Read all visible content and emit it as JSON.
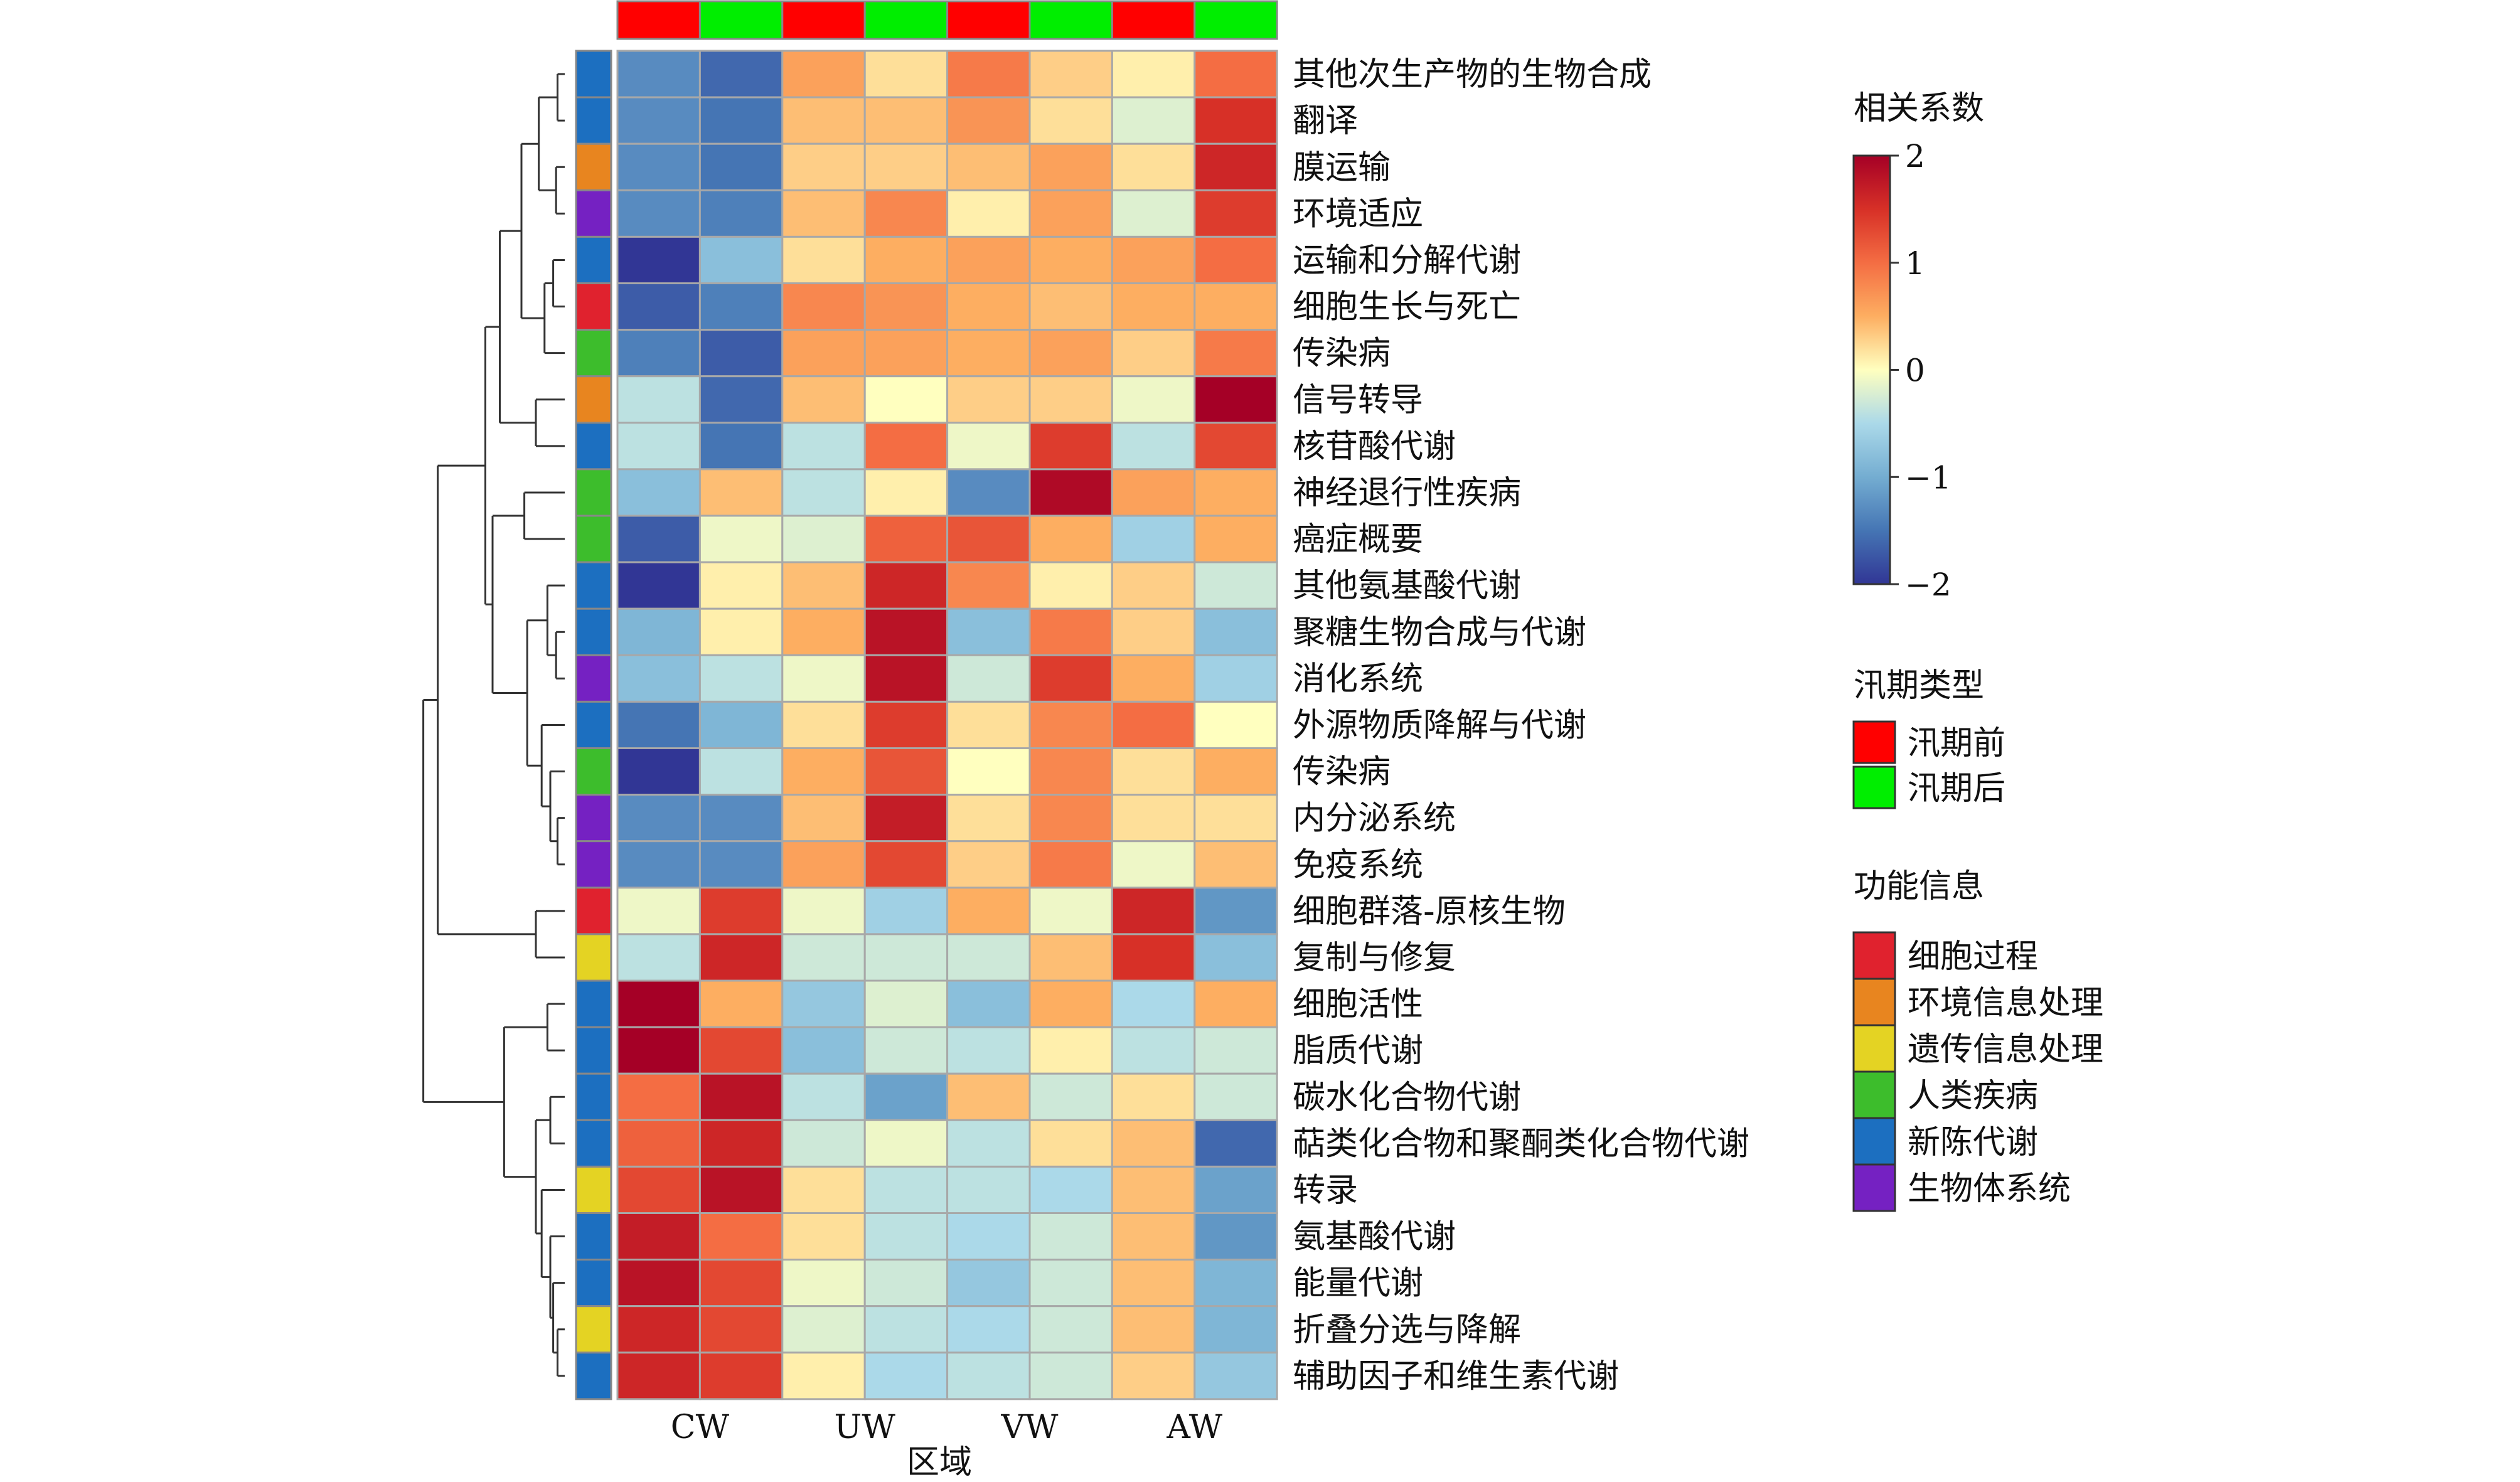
{
  "chart_data": {
    "type": "heatmap",
    "columns": [
      "CW",
      "CW",
      "UW",
      "UW",
      "VW",
      "VW",
      "AW",
      "AW"
    ],
    "column_groups": [
      "CW",
      "UW",
      "VW",
      "AW"
    ],
    "xlabel": "区域",
    "season_annotation": [
      "汛期前",
      "汛期后",
      "汛期前",
      "汛期后",
      "汛期前",
      "汛期后",
      "汛期前",
      "汛期后"
    ],
    "rows": [
      {
        "label": "其他次生产物的生物合成",
        "function": "新陈代谢",
        "values": [
          -1.3,
          -1.6,
          0.6,
          0.2,
          0.9,
          0.3,
          0.1,
          1.0
        ]
      },
      {
        "label": "翻译",
        "function": "新陈代谢",
        "values": [
          -1.3,
          -1.5,
          0.4,
          0.4,
          0.7,
          0.2,
          -0.2,
          1.5
        ]
      },
      {
        "label": "膜运输",
        "function": "环境信息处理",
        "values": [
          -1.3,
          -1.5,
          0.3,
          0.3,
          0.4,
          0.6,
          0.2,
          1.6
        ]
      },
      {
        "label": "环境适应",
        "function": "生物体系统",
        "values": [
          -1.3,
          -1.4,
          0.4,
          0.8,
          0.1,
          0.6,
          -0.2,
          1.4
        ]
      },
      {
        "label": "运输和分解代谢",
        "function": "新陈代谢",
        "values": [
          -2.0,
          -0.8,
          0.2,
          0.5,
          0.6,
          0.5,
          0.6,
          1.0
        ]
      },
      {
        "label": "细胞生长与死亡",
        "function": "细胞过程",
        "values": [
          -1.7,
          -1.4,
          0.8,
          0.7,
          0.5,
          0.4,
          0.5,
          0.5
        ]
      },
      {
        "label": "传染病",
        "function": "人类疾病",
        "values": [
          -1.4,
          -1.7,
          0.6,
          0.6,
          0.5,
          0.6,
          0.3,
          0.9
        ]
      },
      {
        "label": "信号转导",
        "function": "环境信息处理",
        "values": [
          -0.4,
          -1.6,
          0.4,
          0.0,
          0.3,
          0.3,
          -0.1,
          2.1
        ]
      },
      {
        "label": "核苷酸代谢",
        "function": "新陈代谢",
        "values": [
          -0.4,
          -1.5,
          -0.4,
          1.0,
          -0.1,
          1.4,
          -0.4,
          1.3
        ]
      },
      {
        "label": "神经退行性疾病",
        "function": "人类疾病",
        "values": [
          -0.8,
          0.4,
          -0.4,
          0.1,
          -1.3,
          1.9,
          0.6,
          0.5
        ]
      },
      {
        "label": "癌症概要",
        "function": "人类疾病",
        "values": [
          -1.7,
          -0.1,
          -0.2,
          1.1,
          1.2,
          0.5,
          -0.6,
          0.5
        ]
      },
      {
        "label": "其他氨基酸代谢",
        "function": "新陈代谢",
        "values": [
          -2.0,
          0.1,
          0.4,
          1.6,
          0.8,
          0.1,
          0.3,
          -0.3
        ]
      },
      {
        "label": "聚糖生物合成与代谢",
        "function": "新陈代谢",
        "values": [
          -0.9,
          0.1,
          0.5,
          1.8,
          -0.8,
          0.9,
          0.3,
          -0.8
        ]
      },
      {
        "label": "消化系统",
        "function": "生物体系统",
        "values": [
          -0.8,
          -0.4,
          -0.1,
          1.8,
          -0.3,
          1.4,
          0.5,
          -0.6
        ]
      },
      {
        "label": "外源物质降解与代谢",
        "function": "新陈代谢",
        "values": [
          -1.5,
          -0.9,
          0.2,
          1.4,
          0.2,
          0.8,
          1.0,
          0.0
        ]
      },
      {
        "label": "传染病",
        "function": "人类疾病",
        "values": [
          -2.0,
          -0.4,
          0.5,
          1.2,
          0.0,
          0.8,
          0.2,
          0.5
        ]
      },
      {
        "label": "内分泌系统",
        "function": "生物体系统",
        "values": [
          -1.3,
          -1.3,
          0.4,
          1.7,
          0.2,
          0.8,
          0.2,
          0.2
        ]
      },
      {
        "label": "免疫系统",
        "function": "生物体系统",
        "values": [
          -1.3,
          -1.3,
          0.6,
          1.3,
          0.3,
          0.9,
          -0.1,
          0.4
        ]
      },
      {
        "label": "细胞群落-原核生物",
        "function": "细胞过程",
        "values": [
          -0.1,
          1.4,
          -0.1,
          -0.6,
          0.5,
          -0.1,
          1.6,
          -1.2
        ]
      },
      {
        "label": "复制与修复",
        "function": "遗传信息处理",
        "values": [
          -0.4,
          1.6,
          -0.3,
          -0.3,
          -0.3,
          0.4,
          1.5,
          -0.8
        ]
      },
      {
        "label": "细胞活性",
        "function": "新陈代谢",
        "values": [
          2.0,
          0.5,
          -0.7,
          -0.2,
          -0.8,
          0.5,
          -0.5,
          0.5
        ]
      },
      {
        "label": "脂质代谢",
        "function": "新陈代谢",
        "values": [
          2.0,
          1.3,
          -0.8,
          -0.3,
          -0.4,
          0.1,
          -0.4,
          -0.3
        ]
      },
      {
        "label": "碳水化合物代谢",
        "function": "新陈代谢",
        "values": [
          1.0,
          1.8,
          -0.4,
          -1.1,
          0.4,
          -0.3,
          0.2,
          -0.3
        ]
      },
      {
        "label": "萜类化合物和聚酮类化合物代谢",
        "function": "新陈代谢",
        "values": [
          1.1,
          1.6,
          -0.3,
          -0.1,
          -0.4,
          0.2,
          0.4,
          -1.6
        ]
      },
      {
        "label": "转录",
        "function": "遗传信息处理",
        "values": [
          1.3,
          1.8,
          0.2,
          -0.4,
          -0.4,
          -0.5,
          0.4,
          -1.1
        ]
      },
      {
        "label": "氨基酸代谢",
        "function": "新陈代谢",
        "values": [
          1.7,
          1.0,
          0.2,
          -0.4,
          -0.5,
          -0.3,
          0.4,
          -1.2
        ]
      },
      {
        "label": "能量代谢",
        "function": "新陈代谢",
        "values": [
          1.8,
          1.3,
          -0.1,
          -0.3,
          -0.7,
          -0.3,
          0.4,
          -0.9
        ]
      },
      {
        "label": "折叠分选与降解",
        "function": "遗传信息处理",
        "values": [
          1.6,
          1.3,
          -0.2,
          -0.4,
          -0.5,
          -0.3,
          0.4,
          -0.9
        ]
      },
      {
        "label": "辅助因子和维生素代谢",
        "function": "新陈代谢",
        "values": [
          1.6,
          1.4,
          0.1,
          -0.5,
          -0.4,
          -0.3,
          0.3,
          -0.7
        ]
      }
    ],
    "colorbar": {
      "title": "相关系数",
      "range": [
        -2,
        2
      ],
      "ticks": [
        "2",
        "1",
        "0",
        "−1",
        "−2"
      ]
    },
    "legend_season": {
      "title": "汛期类型",
      "items": [
        {
          "name": "汛期前",
          "color": "#ff0000"
        },
        {
          "name": "汛期后",
          "color": "#00ee00"
        }
      ]
    },
    "legend_function": {
      "title": "功能信息",
      "items": [
        {
          "name": "细胞过程",
          "color": "#e0222e"
        },
        {
          "name": "环境信息处理",
          "color": "#e8851f"
        },
        {
          "name": "遗传信息处理",
          "color": "#e4d323"
        },
        {
          "name": "人类疾病",
          "color": "#3dbd2c"
        },
        {
          "name": "新陈代谢",
          "color": "#1c6fc0"
        },
        {
          "name": "生物体系统",
          "color": "#7521c2"
        }
      ]
    },
    "row_dendrogram": true,
    "legend_placement": "right",
    "grid": false
  }
}
